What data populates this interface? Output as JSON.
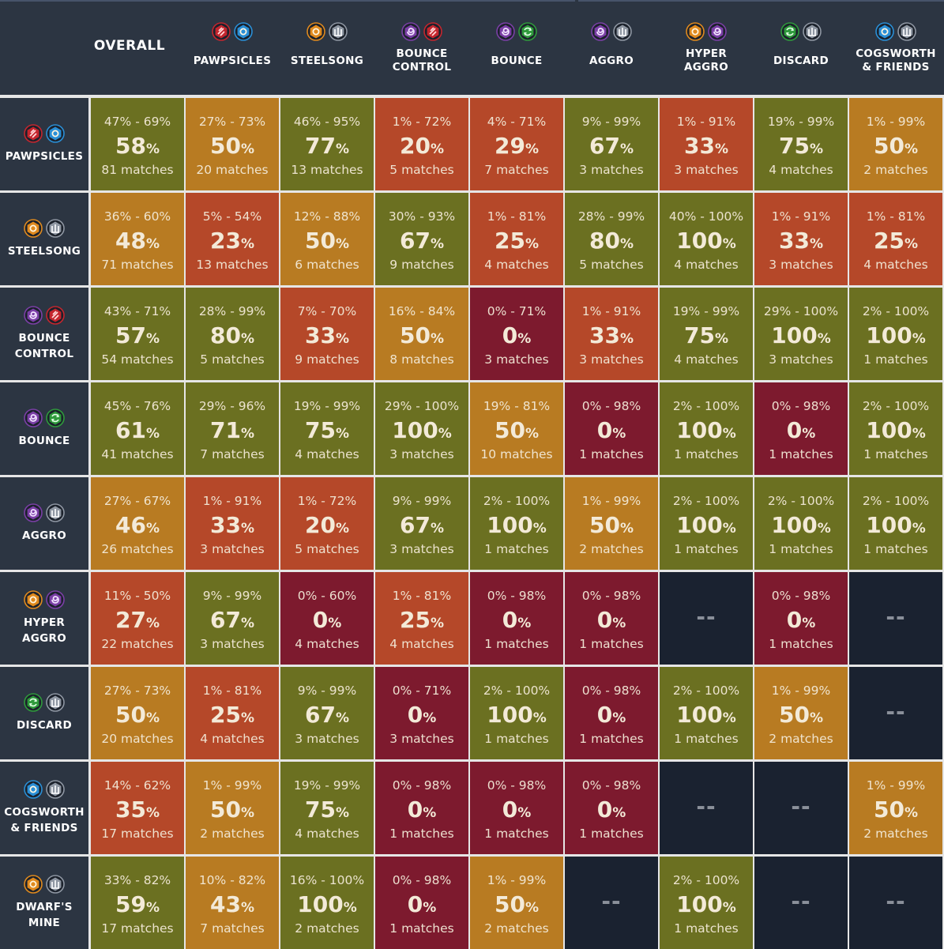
{
  "colors": {
    "green": "#6b7021",
    "orange": "#b87b22",
    "red": "#b54829",
    "darkred": "#7d1a2e",
    "empty": "#1a2230",
    "header": "#2c3542"
  },
  "icon_colors": {
    "red-hex": "#c4262e",
    "blue-gear": "#2a8fd6",
    "orange-gear": "#e08a1e",
    "silver-tower": "#8f97a3",
    "purple-swirl": "#7b3fa6",
    "green-cycle": "#2f9a3c"
  },
  "chart_data": {
    "type": "heatmap",
    "title": "",
    "overall_label": "OVERALL",
    "columns": [
      {
        "key": "pawpsicles",
        "label": "PAWPSICLES",
        "icons": [
          "red-hex",
          "blue-gear"
        ]
      },
      {
        "key": "steelsong",
        "label": "STEELSONG",
        "icons": [
          "orange-gear",
          "silver-tower"
        ]
      },
      {
        "key": "bounce-control",
        "label": "BOUNCE CONTROL",
        "label_lines": [
          "BOUNCE",
          "CONTROL"
        ],
        "icons": [
          "purple-swirl",
          "red-hex"
        ]
      },
      {
        "key": "bounce",
        "label": "BOUNCE",
        "icons": [
          "purple-swirl",
          "green-cycle"
        ]
      },
      {
        "key": "aggro",
        "label": "AGGRO",
        "icons": [
          "purple-swirl",
          "silver-tower"
        ]
      },
      {
        "key": "hyper-aggro",
        "label": "HYPER AGGRO",
        "label_lines": [
          "HYPER",
          "AGGRO"
        ],
        "icons": [
          "orange-gear",
          "purple-swirl"
        ]
      },
      {
        "key": "discard",
        "label": "DISCARD",
        "icons": [
          "green-cycle",
          "silver-tower"
        ]
      },
      {
        "key": "cogsworth",
        "label": "COGSWORTH & FRIENDS",
        "label_lines": [
          "COGSWORTH",
          "& FRIENDS"
        ],
        "icons": [
          "blue-gear",
          "silver-tower"
        ]
      }
    ],
    "rows": [
      {
        "key": "pawpsicles",
        "label_lines": [
          "PAWPSICLES"
        ],
        "icons": [
          "red-hex",
          "blue-gear"
        ],
        "cells": [
          {
            "range": "47% - 69%",
            "pct": 58,
            "matches": "81 matches",
            "color": "green"
          },
          {
            "range": "27% - 73%",
            "pct": 50,
            "matches": "20 matches",
            "color": "orange"
          },
          {
            "range": "46% - 95%",
            "pct": 77,
            "matches": "13 matches",
            "color": "green"
          },
          {
            "range": "1% - 72%",
            "pct": 20,
            "matches": "5 matches",
            "color": "red"
          },
          {
            "range": "4% - 71%",
            "pct": 29,
            "matches": "7 matches",
            "color": "red"
          },
          {
            "range": "9% - 99%",
            "pct": 67,
            "matches": "3 matches",
            "color": "green"
          },
          {
            "range": "1% - 91%",
            "pct": 33,
            "matches": "3 matches",
            "color": "red"
          },
          {
            "range": "19% - 99%",
            "pct": 75,
            "matches": "4 matches",
            "color": "green"
          },
          {
            "range": "1% - 99%",
            "pct": 50,
            "matches": "2 matches",
            "color": "orange"
          }
        ]
      },
      {
        "key": "steelsong",
        "label_lines": [
          "STEELSONG"
        ],
        "icons": [
          "orange-gear",
          "silver-tower"
        ],
        "cells": [
          {
            "range": "36% - 60%",
            "pct": 48,
            "matches": "71 matches",
            "color": "orange"
          },
          {
            "range": "5% - 54%",
            "pct": 23,
            "matches": "13 matches",
            "color": "red"
          },
          {
            "range": "12% - 88%",
            "pct": 50,
            "matches": "6 matches",
            "color": "orange"
          },
          {
            "range": "30% - 93%",
            "pct": 67,
            "matches": "9 matches",
            "color": "green"
          },
          {
            "range": "1% - 81%",
            "pct": 25,
            "matches": "4 matches",
            "color": "red"
          },
          {
            "range": "28% - 99%",
            "pct": 80,
            "matches": "5 matches",
            "color": "green"
          },
          {
            "range": "40% - 100%",
            "pct": 100,
            "matches": "4 matches",
            "color": "green"
          },
          {
            "range": "1% - 91%",
            "pct": 33,
            "matches": "3 matches",
            "color": "red"
          },
          {
            "range": "1% - 81%",
            "pct": 25,
            "matches": "4 matches",
            "color": "red"
          }
        ]
      },
      {
        "key": "bounce-control",
        "label_lines": [
          "BOUNCE",
          "CONTROL"
        ],
        "icons": [
          "purple-swirl",
          "red-hex"
        ],
        "cells": [
          {
            "range": "43% - 71%",
            "pct": 57,
            "matches": "54 matches",
            "color": "green"
          },
          {
            "range": "28% - 99%",
            "pct": 80,
            "matches": "5 matches",
            "color": "green"
          },
          {
            "range": "7% - 70%",
            "pct": 33,
            "matches": "9 matches",
            "color": "red"
          },
          {
            "range": "16% - 84%",
            "pct": 50,
            "matches": "8 matches",
            "color": "orange"
          },
          {
            "range": "0% - 71%",
            "pct": 0,
            "matches": "3 matches",
            "color": "darkred"
          },
          {
            "range": "1% - 91%",
            "pct": 33,
            "matches": "3 matches",
            "color": "red"
          },
          {
            "range": "19% - 99%",
            "pct": 75,
            "matches": "4 matches",
            "color": "green"
          },
          {
            "range": "29% - 100%",
            "pct": 100,
            "matches": "3 matches",
            "color": "green"
          },
          {
            "range": "2% - 100%",
            "pct": 100,
            "matches": "1 matches",
            "color": "green"
          }
        ]
      },
      {
        "key": "bounce",
        "label_lines": [
          "BOUNCE"
        ],
        "icons": [
          "purple-swirl",
          "green-cycle"
        ],
        "cells": [
          {
            "range": "45% - 76%",
            "pct": 61,
            "matches": "41 matches",
            "color": "green"
          },
          {
            "range": "29% - 96%",
            "pct": 71,
            "matches": "7 matches",
            "color": "green"
          },
          {
            "range": "19% - 99%",
            "pct": 75,
            "matches": "4 matches",
            "color": "green"
          },
          {
            "range": "29% - 100%",
            "pct": 100,
            "matches": "3 matches",
            "color": "green"
          },
          {
            "range": "19% - 81%",
            "pct": 50,
            "matches": "10 matches",
            "color": "orange"
          },
          {
            "range": "0% - 98%",
            "pct": 0,
            "matches": "1 matches",
            "color": "darkred"
          },
          {
            "range": "2% - 100%",
            "pct": 100,
            "matches": "1 matches",
            "color": "green"
          },
          {
            "range": "0% - 98%",
            "pct": 0,
            "matches": "1 matches",
            "color": "darkred"
          },
          {
            "range": "2% - 100%",
            "pct": 100,
            "matches": "1 matches",
            "color": "green"
          }
        ]
      },
      {
        "key": "aggro",
        "label_lines": [
          "AGGRO"
        ],
        "icons": [
          "purple-swirl",
          "silver-tower"
        ],
        "cells": [
          {
            "range": "27% - 67%",
            "pct": 46,
            "matches": "26 matches",
            "color": "orange"
          },
          {
            "range": "1% - 91%",
            "pct": 33,
            "matches": "3 matches",
            "color": "red"
          },
          {
            "range": "1% - 72%",
            "pct": 20,
            "matches": "5 matches",
            "color": "red"
          },
          {
            "range": "9% - 99%",
            "pct": 67,
            "matches": "3 matches",
            "color": "green"
          },
          {
            "range": "2% - 100%",
            "pct": 100,
            "matches": "1 matches",
            "color": "green"
          },
          {
            "range": "1% - 99%",
            "pct": 50,
            "matches": "2 matches",
            "color": "orange"
          },
          {
            "range": "2% - 100%",
            "pct": 100,
            "matches": "1 matches",
            "color": "green"
          },
          {
            "range": "2% - 100%",
            "pct": 100,
            "matches": "1 matches",
            "color": "green"
          },
          {
            "range": "2% - 100%",
            "pct": 100,
            "matches": "1 matches",
            "color": "green"
          }
        ]
      },
      {
        "key": "hyper-aggro",
        "label_lines": [
          "HYPER AGGRO"
        ],
        "icons": [
          "orange-gear",
          "purple-swirl"
        ],
        "cells": [
          {
            "range": "11% - 50%",
            "pct": 27,
            "matches": "22 matches",
            "color": "red"
          },
          {
            "range": "9% - 99%",
            "pct": 67,
            "matches": "3 matches",
            "color": "green"
          },
          {
            "range": "0% - 60%",
            "pct": 0,
            "matches": "4 matches",
            "color": "darkred"
          },
          {
            "range": "1% - 81%",
            "pct": 25,
            "matches": "4 matches",
            "color": "red"
          },
          {
            "range": "0% - 98%",
            "pct": 0,
            "matches": "1 matches",
            "color": "darkred"
          },
          {
            "range": "0% - 98%",
            "pct": 0,
            "matches": "1 matches",
            "color": "darkred"
          },
          {
            "empty": "--",
            "color": "empty"
          },
          {
            "range": "0% - 98%",
            "pct": 0,
            "matches": "1 matches",
            "color": "darkred"
          },
          {
            "empty": "--",
            "color": "empty"
          }
        ]
      },
      {
        "key": "discard",
        "label_lines": [
          "DISCARD"
        ],
        "icons": [
          "green-cycle",
          "silver-tower"
        ],
        "cells": [
          {
            "range": "27% - 73%",
            "pct": 50,
            "matches": "20 matches",
            "color": "orange"
          },
          {
            "range": "1% - 81%",
            "pct": 25,
            "matches": "4 matches",
            "color": "red"
          },
          {
            "range": "9% - 99%",
            "pct": 67,
            "matches": "3 matches",
            "color": "green"
          },
          {
            "range": "0% - 71%",
            "pct": 0,
            "matches": "3 matches",
            "color": "darkred"
          },
          {
            "range": "2% - 100%",
            "pct": 100,
            "matches": "1 matches",
            "color": "green"
          },
          {
            "range": "0% - 98%",
            "pct": 0,
            "matches": "1 matches",
            "color": "darkred"
          },
          {
            "range": "2% - 100%",
            "pct": 100,
            "matches": "1 matches",
            "color": "green"
          },
          {
            "range": "1% - 99%",
            "pct": 50,
            "matches": "2 matches",
            "color": "orange"
          },
          {
            "empty": "--",
            "color": "empty"
          }
        ]
      },
      {
        "key": "cogsworth",
        "label_lines": [
          "COGSWORTH",
          "& FRIENDS"
        ],
        "icons": [
          "blue-gear",
          "silver-tower"
        ],
        "cells": [
          {
            "range": "14% - 62%",
            "pct": 35,
            "matches": "17 matches",
            "color": "red"
          },
          {
            "range": "1% - 99%",
            "pct": 50,
            "matches": "2 matches",
            "color": "orange"
          },
          {
            "range": "19% - 99%",
            "pct": 75,
            "matches": "4 matches",
            "color": "green"
          },
          {
            "range": "0% - 98%",
            "pct": 0,
            "matches": "1 matches",
            "color": "darkred"
          },
          {
            "range": "0% - 98%",
            "pct": 0,
            "matches": "1 matches",
            "color": "darkred"
          },
          {
            "range": "0% - 98%",
            "pct": 0,
            "matches": "1 matches",
            "color": "darkred"
          },
          {
            "empty": "--",
            "color": "empty"
          },
          {
            "empty": "--",
            "color": "empty"
          },
          {
            "range": "1% - 99%",
            "pct": 50,
            "matches": "2 matches",
            "color": "orange"
          }
        ]
      },
      {
        "key": "dwarfs-mine",
        "label_lines": [
          "DWARF'S",
          "MINE"
        ],
        "icons": [
          "orange-gear",
          "silver-tower"
        ],
        "cells": [
          {
            "range": "33% - 82%",
            "pct": 59,
            "matches": "17 matches",
            "color": "green"
          },
          {
            "range": "10% - 82%",
            "pct": 43,
            "matches": "7 matches",
            "color": "orange"
          },
          {
            "range": "16% - 100%",
            "pct": 100,
            "matches": "2 matches",
            "color": "green"
          },
          {
            "range": "0% - 98%",
            "pct": 0,
            "matches": "1 matches",
            "color": "darkred"
          },
          {
            "range": "1% - 99%",
            "pct": 50,
            "matches": "2 matches",
            "color": "orange"
          },
          {
            "empty": "--",
            "color": "empty"
          },
          {
            "range": "2% - 100%",
            "pct": 100,
            "matches": "1 matches",
            "color": "green"
          },
          {
            "empty": "--",
            "color": "empty"
          },
          {
            "empty": "--",
            "color": "empty"
          }
        ]
      }
    ]
  }
}
